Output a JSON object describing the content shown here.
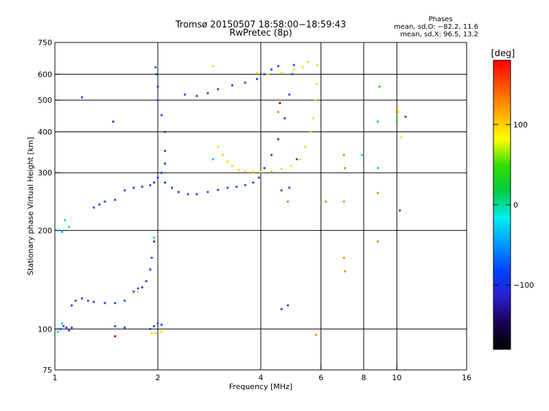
{
  "chart_data": {
    "type": "scatter",
    "title": "Tromsø 20150507 18:58:00−18:59:43",
    "subtitle": "RwPretec (8p)",
    "xlabel": "Frequency [MHz]",
    "ylabel": "Stationary phase Virtual Height [km]",
    "x_scale": "log",
    "y_scale": "log",
    "xlim": [
      1,
      16
    ],
    "ylim": [
      75,
      750
    ],
    "x_ticks": [
      1,
      2,
      4,
      6,
      8,
      10,
      16
    ],
    "y_ticks": [
      75,
      100,
      200,
      300,
      400,
      500,
      600,
      750
    ],
    "grid": true,
    "stats": {
      "heading": "Phases",
      "line_o": "mean, sd,O: −82.2, 11.6",
      "line_x": "mean, sd,X:  96.5, 13.2"
    },
    "colorbar": {
      "label": "[deg]",
      "ticks": [
        100,
        0,
        -100
      ],
      "range": [
        -180,
        180
      ],
      "colors": [
        "#000000",
        "#1a0050",
        "#2a1ecc",
        "#0044ff",
        "#0099ff",
        "#00eeee",
        "#00cc44",
        "#33dd00",
        "#ffff00",
        "#ffaa00",
        "#ff5500",
        "#ff0000"
      ]
    },
    "series": [
      {
        "color": "#2a4fd6",
        "points": [
          [
            1.04,
            100
          ],
          [
            1.06,
            102
          ],
          [
            1.08,
            101
          ],
          [
            1.1,
            99
          ],
          [
            1.12,
            101
          ],
          [
            1.12,
            118
          ],
          [
            1.15,
            122
          ],
          [
            1.2,
            124
          ],
          [
            1.25,
            122
          ],
          [
            1.3,
            121
          ],
          [
            1.4,
            120
          ],
          [
            1.5,
            120
          ],
          [
            1.6,
            122
          ],
          [
            1.7,
            130
          ],
          [
            1.75,
            133
          ],
          [
            1.8,
            134
          ],
          [
            1.85,
            140
          ],
          [
            1.9,
            152
          ],
          [
            1.92,
            165
          ],
          [
            1.95,
            185
          ],
          [
            1.3,
            235
          ],
          [
            1.35,
            240
          ],
          [
            1.4,
            245
          ],
          [
            1.5,
            248
          ],
          [
            1.6,
            265
          ],
          [
            1.7,
            270
          ],
          [
            1.8,
            272
          ],
          [
            1.9,
            275
          ],
          [
            1.95,
            280
          ],
          [
            2.0,
            290
          ],
          [
            2.05,
            300
          ],
          [
            2.1,
            320
          ],
          [
            2.1,
            350
          ],
          [
            2.1,
            400
          ],
          [
            2.05,
            450
          ],
          [
            2.0,
            500
          ],
          [
            2.0,
            550
          ],
          [
            1.98,
            600
          ],
          [
            1.97,
            630
          ],
          [
            2.05,
            300
          ],
          [
            2.1,
            280
          ],
          [
            2.2,
            270
          ],
          [
            2.3,
            262
          ],
          [
            2.45,
            258
          ],
          [
            2.6,
            258
          ],
          [
            2.8,
            262
          ],
          [
            3.0,
            266
          ],
          [
            3.2,
            270
          ],
          [
            3.4,
            272
          ],
          [
            3.6,
            275
          ],
          [
            3.8,
            280
          ],
          [
            3.95,
            290
          ],
          [
            4.1,
            310
          ],
          [
            4.3,
            340
          ],
          [
            4.5,
            380
          ],
          [
            4.7,
            440
          ],
          [
            4.85,
            520
          ],
          [
            4.95,
            600
          ],
          [
            5.0,
            640
          ],
          [
            2.4,
            520
          ],
          [
            2.6,
            515
          ],
          [
            2.8,
            525
          ],
          [
            3.0,
            540
          ],
          [
            3.3,
            555
          ],
          [
            3.6,
            565
          ],
          [
            3.9,
            580
          ],
          [
            4.1,
            600
          ],
          [
            4.3,
            620
          ],
          [
            4.5,
            635
          ],
          [
            1.48,
            430
          ],
          [
            1.2,
            510
          ],
          [
            1.9,
            100
          ],
          [
            1.95,
            102
          ],
          [
            2.0,
            104
          ],
          [
            2.05,
            103
          ],
          [
            1.5,
            102
          ],
          [
            1.6,
            101
          ],
          [
            4.6,
            115
          ],
          [
            4.8,
            118
          ],
          [
            4.6,
            265
          ],
          [
            4.85,
            270
          ],
          [
            5.1,
            330
          ],
          [
            10.2,
            230
          ],
          [
            10.6,
            445
          ]
        ]
      },
      {
        "color": "#ffdd00",
        "points": [
          [
            3.0,
            360
          ],
          [
            3.1,
            340
          ],
          [
            3.2,
            325
          ],
          [
            3.3,
            315
          ],
          [
            3.45,
            306
          ],
          [
            3.6,
            303
          ],
          [
            3.8,
            302
          ],
          [
            4.0,
            302
          ],
          [
            4.3,
            303
          ],
          [
            4.6,
            308
          ],
          [
            4.9,
            315
          ],
          [
            5.2,
            330
          ],
          [
            5.4,
            360
          ],
          [
            5.6,
            400
          ],
          [
            5.7,
            440
          ],
          [
            5.78,
            500
          ],
          [
            5.82,
            560
          ],
          [
            5.85,
            640
          ],
          [
            3.9,
            605
          ],
          [
            4.2,
            600
          ],
          [
            4.6,
            605
          ],
          [
            5.0,
            620
          ],
          [
            5.3,
            630
          ],
          [
            5.5,
            655
          ],
          [
            1.92,
            97
          ],
          [
            1.97,
            97
          ],
          [
            2.05,
            98
          ],
          [
            1.75,
            130
          ],
          [
            10.1,
            460
          ],
          [
            10.3,
            385
          ],
          [
            2.9,
            635
          ]
        ]
      },
      {
        "color": "#ff8c00",
        "points": [
          [
            5.8,
            96
          ],
          [
            7.0,
            340
          ],
          [
            7.05,
            310
          ],
          [
            7.0,
            165
          ],
          [
            7.05,
            150
          ],
          [
            4.5,
            460
          ],
          [
            8.8,
            260
          ],
          [
            8.8,
            185
          ],
          [
            4.8,
            245
          ],
          [
            6.2,
            245
          ],
          [
            7.0,
            245
          ],
          [
            10.0,
            470
          ]
        ]
      },
      {
        "color": "#00d8e6",
        "points": [
          [
            1.02,
            200
          ],
          [
            1.05,
            198
          ],
          [
            1.07,
            215
          ],
          [
            1.1,
            205
          ],
          [
            1.02,
            98
          ],
          [
            1.05,
            104
          ],
          [
            2.9,
            330
          ],
          [
            8.8,
            310
          ],
          [
            8.8,
            430
          ],
          [
            7.9,
            340
          ],
          [
            1.95,
            190
          ]
        ]
      },
      {
        "color": "#33cc00",
        "points": [
          [
            8.9,
            550
          ],
          [
            10.0,
            430
          ]
        ]
      },
      {
        "color": "#cc0000",
        "points": [
          [
            4.55,
            490
          ],
          [
            1.5,
            95
          ]
        ]
      }
    ]
  }
}
